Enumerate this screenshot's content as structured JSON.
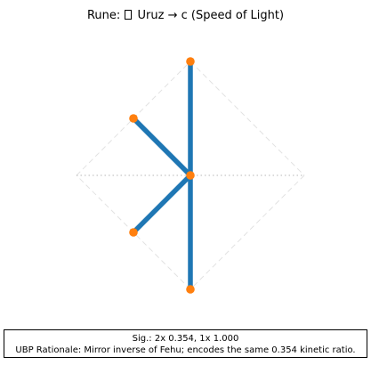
{
  "header": {
    "title_prefix": "Rune:",
    "rune_icon": "missing-glyph-box",
    "title_suffix": "Uruz → c (Speed of Light)"
  },
  "diagram": {
    "guide_color": "#bfbfbf",
    "stroke_color": "#1f77b4",
    "node_color": "#ff7f0e",
    "nodes": [
      {
        "id": "top",
        "x": 0,
        "y": 1
      },
      {
        "id": "upper-left",
        "x": -0.5,
        "y": 0.5
      },
      {
        "id": "center",
        "x": 0,
        "y": 0
      },
      {
        "id": "lower-left",
        "x": -0.5,
        "y": -0.5
      },
      {
        "id": "bottom",
        "x": 0,
        "y": -1
      }
    ],
    "strokes": [
      {
        "from": "top",
        "to": "center"
      },
      {
        "from": "center",
        "to": "bottom"
      },
      {
        "from": "upper-left",
        "to": "center"
      },
      {
        "from": "lower-left",
        "to": "center"
      }
    ]
  },
  "caption": {
    "line1": "Sig.: 2x 0.354, 1x 1.000",
    "line2": "UBP Rationale: Mirror inverse of Fehu; encodes the same 0.354 kinetic ratio."
  }
}
